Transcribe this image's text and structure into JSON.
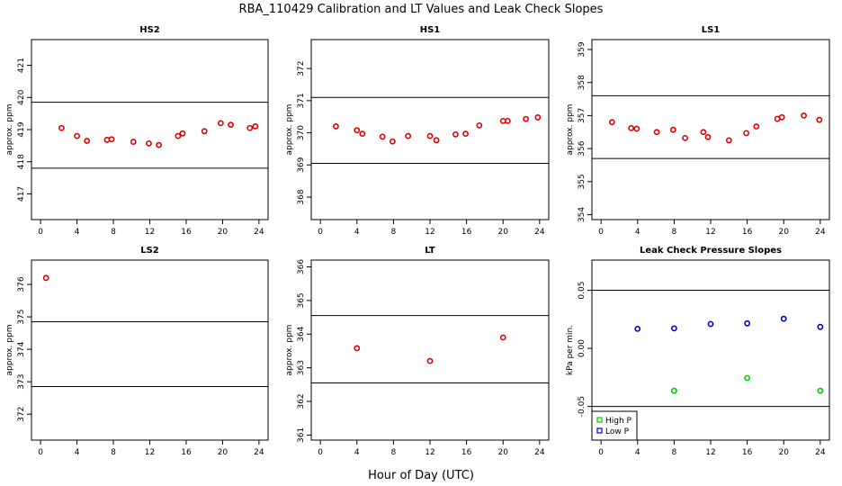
{
  "title": "RBA_110429  Calibration and LT Values and Leak Check Slopes",
  "xlabel": "Hour of Day (UTC)",
  "colors": {
    "sample": "#dd0000",
    "high_p": "#00cc00",
    "low_p": "#0000cc",
    "frame": "#000000"
  },
  "chart_data": [
    {
      "type": "scatter",
      "title": "HS2",
      "ylabel": "approx. ppm",
      "xlim": [
        -1,
        25
      ],
      "ylim": [
        416.2,
        421.8
      ],
      "xticks": [
        0,
        4,
        8,
        12,
        16,
        20,
        24
      ],
      "yticks": [
        417,
        418,
        419,
        420,
        421
      ],
      "hlines": [
        419.85,
        417.8
      ],
      "series": [
        {
          "color": "#dd0000",
          "x": [
            2.3,
            4.0,
            5.1,
            7.3,
            7.8,
            10.2,
            11.9,
            13.0,
            15.1,
            15.6,
            18.0,
            19.8,
            20.9,
            23.0,
            23.6
          ],
          "y": [
            419.05,
            418.8,
            418.65,
            418.68,
            418.7,
            418.62,
            418.57,
            418.52,
            418.8,
            418.88,
            418.95,
            419.2,
            419.15,
            419.05,
            419.1
          ]
        }
      ]
    },
    {
      "type": "scatter",
      "title": "HS1",
      "ylabel": "approx. ppm",
      "xlim": [
        -1,
        25
      ],
      "ylim": [
        367.3,
        372.9
      ],
      "xticks": [
        0,
        4,
        8,
        12,
        16,
        20,
        24
      ],
      "yticks": [
        368,
        369,
        370,
        371,
        372
      ],
      "hlines": [
        371.1,
        369.05
      ],
      "series": [
        {
          "color": "#dd0000",
          "x": [
            1.7,
            4.0,
            4.6,
            6.8,
            7.9,
            9.6,
            12.0,
            12.7,
            14.8,
            15.9,
            17.4,
            20.0,
            20.5,
            22.5,
            23.8
          ],
          "y": [
            370.2,
            370.08,
            369.97,
            369.88,
            369.73,
            369.9,
            369.9,
            369.77,
            369.95,
            369.97,
            370.23,
            370.37,
            370.37,
            370.43,
            370.48
          ]
        }
      ]
    },
    {
      "type": "scatter",
      "title": "LS1",
      "ylabel": "approx. ppm",
      "xlim": [
        -1,
        25
      ],
      "ylim": [
        353.85,
        359.3
      ],
      "xticks": [
        0,
        4,
        8,
        12,
        16,
        20,
        24
      ],
      "yticks": [
        354,
        355,
        356,
        357,
        358,
        359
      ],
      "hlines": [
        357.6,
        355.7
      ],
      "series": [
        {
          "color": "#dd0000",
          "x": [
            1.2,
            3.3,
            3.9,
            6.1,
            7.9,
            9.2,
            11.2,
            11.7,
            14.0,
            15.9,
            17.0,
            19.3,
            19.8,
            22.2,
            23.9
          ],
          "y": [
            356.8,
            356.62,
            356.6,
            356.5,
            356.57,
            356.32,
            356.5,
            356.35,
            356.25,
            356.47,
            356.67,
            356.9,
            356.95,
            357.0,
            356.87
          ]
        }
      ]
    },
    {
      "type": "scatter",
      "title": "LS2",
      "ylabel": "approx. ppm",
      "xlim": [
        -1,
        25
      ],
      "ylim": [
        371.2,
        376.75
      ],
      "xticks": [
        0,
        4,
        8,
        12,
        16,
        20,
        24
      ],
      "yticks": [
        372,
        373,
        374,
        375,
        376
      ],
      "hlines": [
        374.85,
        372.85
      ],
      "series": [
        {
          "color": "#dd0000",
          "x": [
            0.6
          ],
          "y": [
            376.2
          ]
        }
      ]
    },
    {
      "type": "scatter",
      "title": "LT",
      "ylabel": "approx. ppm",
      "xlim": [
        -1,
        25
      ],
      "ylim": [
        360.85,
        366.2
      ],
      "xticks": [
        0,
        4,
        8,
        12,
        16,
        20,
        24
      ],
      "yticks": [
        361,
        362,
        363,
        364,
        365,
        366
      ],
      "hlines": [
        364.55,
        362.55
      ],
      "series": [
        {
          "color": "#dd0000",
          "x": [
            4.0,
            12.0,
            20.0
          ],
          "y": [
            363.58,
            363.2,
            363.9
          ]
        }
      ]
    },
    {
      "type": "scatter",
      "title": "Leak Check Pressure Slopes",
      "ylabel": "kPa per min.",
      "xlim": [
        -1,
        25
      ],
      "ylim": [
        -0.079,
        0.076
      ],
      "xticks": [
        0,
        4,
        8,
        12,
        16,
        20,
        24
      ],
      "yticks": [
        -0.05,
        0.0,
        0.05
      ],
      "ytick_labels": [
        "-0.05",
        "0.00",
        "0.05"
      ],
      "hlines": [
        0.05,
        -0.05
      ],
      "legend": {
        "position": "bottom-left",
        "entries": [
          "High P",
          "Low P"
        ]
      },
      "series": [
        {
          "name": "High P",
          "color": "#00cc00",
          "x": [
            8,
            16,
            24
          ],
          "y": [
            -0.0365,
            -0.0255,
            -0.0365
          ]
        },
        {
          "name": "Low P",
          "color": "#0000cc",
          "x": [
            4,
            8,
            12,
            16,
            20,
            24
          ],
          "y": [
            0.0168,
            0.0172,
            0.021,
            0.0215,
            0.0255,
            0.0185
          ]
        }
      ]
    }
  ]
}
